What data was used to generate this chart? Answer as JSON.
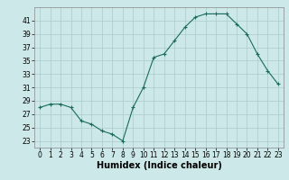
{
  "x": [
    0,
    1,
    2,
    3,
    4,
    5,
    6,
    7,
    8,
    9,
    10,
    11,
    12,
    13,
    14,
    15,
    16,
    17,
    18,
    19,
    20,
    21,
    22,
    23
  ],
  "y": [
    28,
    28.5,
    28.5,
    28,
    26,
    25.5,
    24.5,
    24,
    23,
    28,
    31,
    35.5,
    36,
    38,
    40,
    41.5,
    42,
    42,
    42,
    40.5,
    39,
    36,
    33.5,
    31.5
  ],
  "xlabel": "Humidex (Indice chaleur)",
  "xlim": [
    -0.5,
    23.5
  ],
  "ylim": [
    22,
    43
  ],
  "yticks": [
    23,
    25,
    27,
    29,
    31,
    33,
    35,
    37,
    39,
    41
  ],
  "xticks": [
    0,
    1,
    2,
    3,
    4,
    5,
    6,
    7,
    8,
    9,
    10,
    11,
    12,
    13,
    14,
    15,
    16,
    17,
    18,
    19,
    20,
    21,
    22,
    23
  ],
  "line_color": "#1a6b5a",
  "marker": "+",
  "bg_color": "#cce8e8",
  "grid_color": "#aacccc",
  "label_fontsize": 7,
  "tick_fontsize": 5.5
}
